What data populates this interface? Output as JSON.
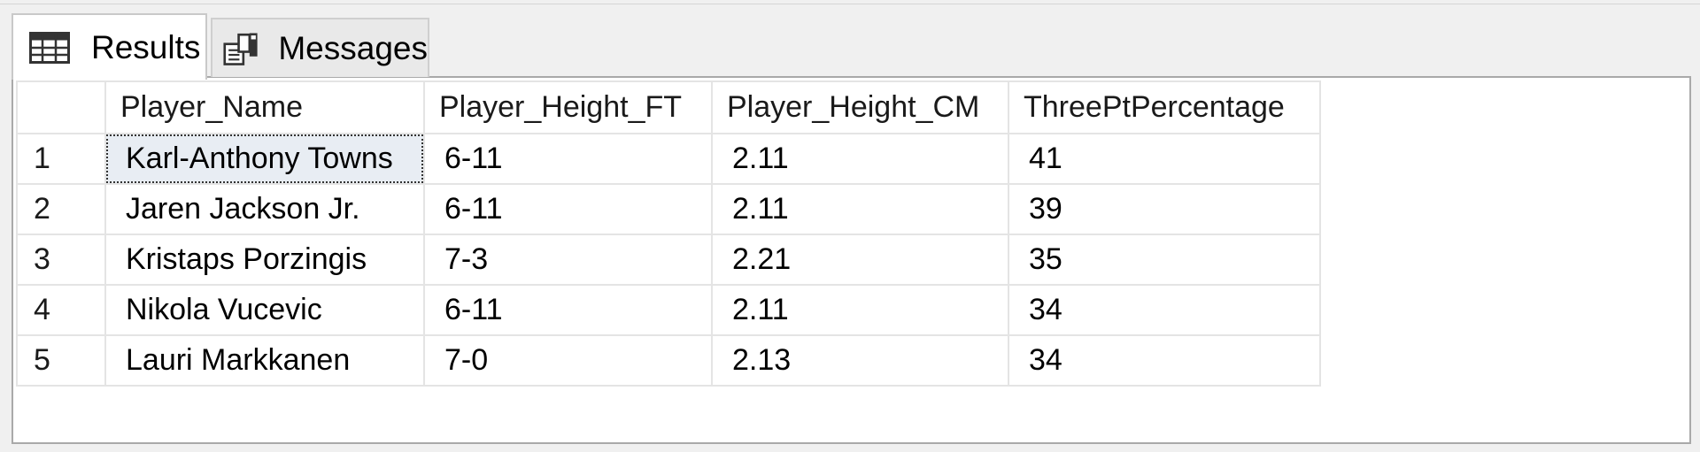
{
  "tabs": [
    {
      "label": "Results",
      "icon": "grid-table-icon",
      "active": true
    },
    {
      "label": "Messages",
      "icon": "messages-icon",
      "active": false
    }
  ],
  "results": {
    "columns": [
      "",
      "Player_Name",
      "Player_Height_FT",
      "Player_Height_CM",
      "ThreePtPercentage"
    ],
    "rows": [
      {
        "n": "1",
        "name": "Karl-Anthony Towns",
        "ft": "6-11",
        "cm": "2.11",
        "pct": "41"
      },
      {
        "n": "2",
        "name": "Jaren Jackson Jr.",
        "ft": "6-11",
        "cm": "2.11",
        "pct": "39"
      },
      {
        "n": "3",
        "name": "Kristaps Porzingis",
        "ft": "7-3",
        "cm": "2.21",
        "pct": "35"
      },
      {
        "n": "4",
        "name": "Nikola Vucevic",
        "ft": "6-11",
        "cm": "2.11",
        "pct": "34"
      },
      {
        "n": "5",
        "name": "Lauri Markkanen",
        "ft": "7-0",
        "cm": "2.13",
        "pct": "34"
      }
    ],
    "selected_cell": "Karl-Anthony Towns"
  },
  "colors": {
    "selected_cell_bg": "#e8edf3",
    "grid_line": "#e4e4e4",
    "panel_border": "#a9a9a9"
  }
}
